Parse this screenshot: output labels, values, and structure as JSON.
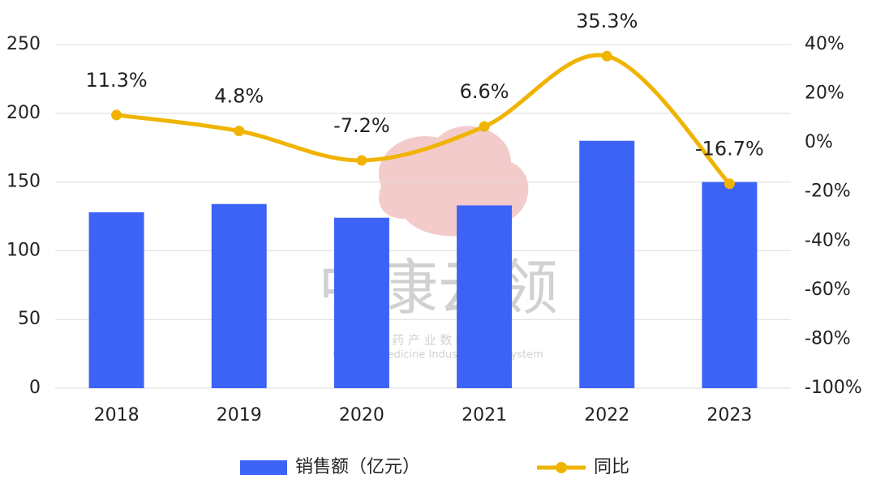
{
  "chart_data": {
    "type": "combo",
    "categories": [
      "2018",
      "2019",
      "2020",
      "2021",
      "2022",
      "2023"
    ],
    "series": [
      {
        "name": "销售额（亿元）",
        "type": "bar",
        "color": "#3d63f6",
        "values": [
          128,
          134,
          124,
          133,
          180,
          150
        ]
      },
      {
        "name": "同比",
        "type": "line",
        "axis": "y2",
        "color": "#f0b400",
        "values": [
          11.3,
          4.8,
          -7.2,
          6.6,
          35.3,
          -16.7
        ],
        "value_labels": [
          "11.3%",
          "4.8%",
          "-7.2%",
          "6.6%",
          "35.3%",
          "-16.7%"
        ]
      }
    ],
    "ylim": [
      0,
      250
    ],
    "yticks": [
      0,
      50,
      100,
      150,
      200,
      250
    ],
    "y2lim": [
      -100,
      40
    ],
    "y2ticks": [
      {
        "value": -100,
        "label": "-100%"
      },
      {
        "value": -80,
        "label": "-80%"
      },
      {
        "value": -60,
        "label": "-60%"
      },
      {
        "value": -40,
        "label": "-40%"
      },
      {
        "value": -20,
        "label": "-20%"
      },
      {
        "value": 0,
        "label": "0%"
      },
      {
        "value": 20,
        "label": "20%"
      },
      {
        "value": 40,
        "label": "40%"
      }
    ],
    "grid": true,
    "legend": "bottom"
  },
  "watermark": {
    "title": "中康云领",
    "subtitle": "中 药 产 业 数 据 系 统",
    "english": "Chinese Medicine Industry Data System"
  }
}
